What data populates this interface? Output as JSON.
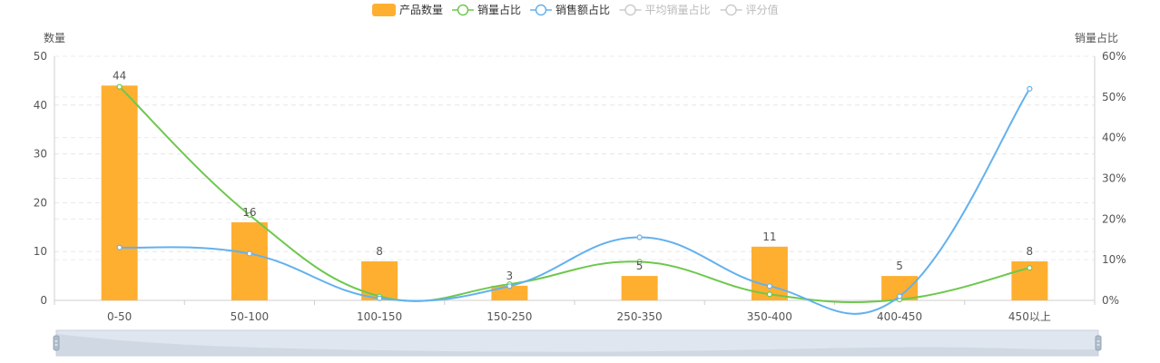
{
  "chart_data": {
    "type": "bar+line",
    "categories": [
      "0-50",
      "50-100",
      "100-150",
      "150-250",
      "250-350",
      "350-400",
      "400-450",
      "450以上"
    ],
    "legend": {
      "position": "top-center",
      "items": [
        {
          "name": "产品数量",
          "type": "bar",
          "color": "#ffaf30",
          "active": true
        },
        {
          "name": "销量占比",
          "type": "line",
          "color": "#6dc84d",
          "active": true
        },
        {
          "name": "销售额占比",
          "type": "line",
          "color": "#63b1ee",
          "active": true
        },
        {
          "name": "平均销量占比",
          "type": "line",
          "color": "#cccccc",
          "active": false
        },
        {
          "name": "评分值",
          "type": "line",
          "color": "#cccccc",
          "active": false
        }
      ]
    },
    "left_axis": {
      "label": "数量",
      "min": 0,
      "max": 50,
      "ticks": [
        "0",
        "10",
        "20",
        "30",
        "40",
        "50"
      ]
    },
    "right_axis": {
      "label": "销量占比",
      "min": 0,
      "max": 60,
      "ticks": [
        "0%",
        "10%",
        "20%",
        "30%",
        "40%",
        "50%",
        "60%"
      ]
    },
    "grid": "dashed-horizontal",
    "series": [
      {
        "name": "产品数量",
        "type": "bar",
        "axis": "left",
        "color": "#ffaf30",
        "values": [
          44,
          16,
          8,
          3,
          5,
          11,
          5,
          8
        ],
        "labels": [
          "44",
          "16",
          "8",
          "3",
          "5",
          "11",
          "5",
          "8"
        ]
      },
      {
        "name": "销量占比",
        "type": "line",
        "axis": "right",
        "color": "#6dc84d",
        "values": [
          52.5,
          21,
          1,
          4,
          9.5,
          1.5,
          0.2,
          8
        ]
      },
      {
        "name": "销售额占比",
        "type": "line",
        "axis": "right",
        "color": "#63b1ee",
        "values": [
          13,
          11.5,
          0.5,
          3.5,
          15.5,
          3.5,
          1,
          52
        ]
      }
    ],
    "datazoom": {
      "start": 0,
      "end": 100
    }
  }
}
